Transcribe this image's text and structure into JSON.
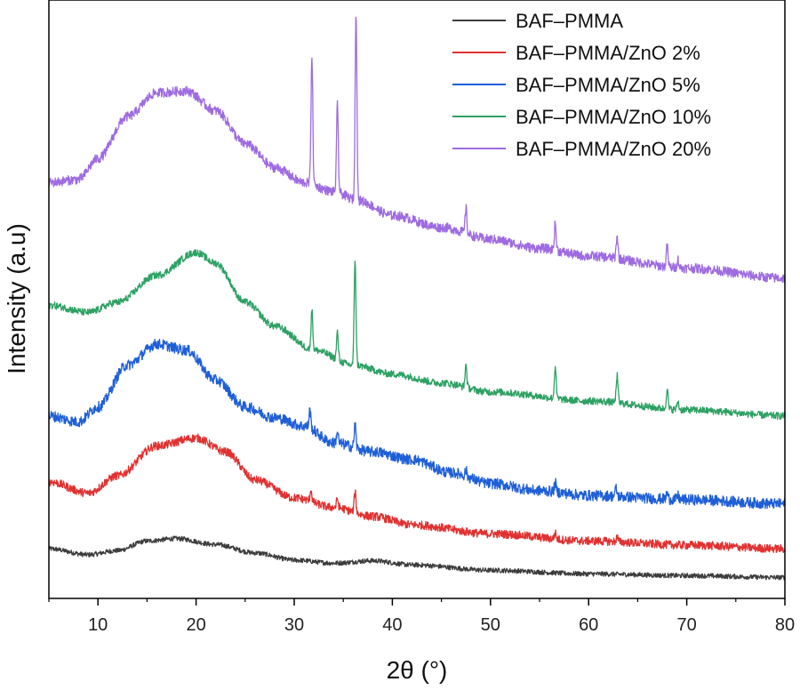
{
  "chart_data": {
    "type": "line",
    "title": "",
    "xlabel": "2θ (°)",
    "ylabel": "Intensity (a.u)",
    "xlim": [
      5,
      80
    ],
    "ylim": [
      0,
      100
    ],
    "xticks": [
      10,
      20,
      30,
      40,
      50,
      60,
      70,
      80
    ],
    "yticks_shown": false,
    "grid": false,
    "legend_position": "top-right",
    "peak_positions_2theta": [
      31.8,
      34.4,
      36.3,
      47.5,
      56.6,
      62.9,
      68.0,
      69.1
    ],
    "series": [
      {
        "name": "BAF–PMMA",
        "color": "#3c3c3c",
        "baseline": [
          [
            5,
            8.3
          ],
          [
            9,
            7.3
          ],
          [
            12,
            8.0
          ],
          [
            15,
            9.6
          ],
          [
            18,
            10.0
          ],
          [
            22,
            9.0
          ],
          [
            26,
            7.6
          ],
          [
            30,
            6.4
          ],
          [
            34,
            5.9
          ],
          [
            38,
            6.3
          ],
          [
            42,
            5.6
          ],
          [
            50,
            4.7
          ],
          [
            60,
            4.1
          ],
          [
            70,
            3.8
          ],
          [
            80,
            3.5
          ]
        ],
        "peaks": [],
        "noise": 0.4
      },
      {
        "name": "BAF–PMMA/ZnO 2%",
        "color": "#e03131",
        "baseline": [
          [
            5,
            19.5
          ],
          [
            9,
            17.6
          ],
          [
            12,
            20.5
          ],
          [
            16,
            25.5
          ],
          [
            20,
            26.8
          ],
          [
            23,
            24.5
          ],
          [
            26,
            19.8
          ],
          [
            30,
            16.8
          ],
          [
            34,
            15.2
          ],
          [
            38,
            13.7
          ],
          [
            42,
            12.3
          ],
          [
            50,
            10.8
          ],
          [
            60,
            9.6
          ],
          [
            70,
            8.9
          ],
          [
            80,
            8.3
          ]
        ],
        "peaks": [
          [
            31.7,
            2.0
          ],
          [
            34.4,
            1.5
          ],
          [
            36.2,
            3.5
          ],
          [
            56.6,
            1.0
          ],
          [
            62.9,
            0.8
          ]
        ],
        "noise": 0.7
      },
      {
        "name": "BAF–PMMA/ZnO 5%",
        "color": "#1f5fd6",
        "baseline": [
          [
            5,
            30.5
          ],
          [
            8,
            29.5
          ],
          [
            10,
            32.0
          ],
          [
            13,
            39.0
          ],
          [
            16,
            42.5
          ],
          [
            19,
            41.5
          ],
          [
            22,
            36.5
          ],
          [
            25,
            32.0
          ],
          [
            28,
            30.2
          ],
          [
            31,
            28.8
          ],
          [
            34,
            26.0
          ],
          [
            38,
            24.5
          ],
          [
            42,
            23.2
          ],
          [
            46,
            21.0
          ],
          [
            50,
            19.2
          ],
          [
            55,
            18.0
          ],
          [
            60,
            17.2
          ],
          [
            70,
            16.5
          ],
          [
            80,
            15.8
          ]
        ],
        "peaks": [
          [
            31.6,
            3.0
          ],
          [
            34.4,
            2.0
          ],
          [
            36.2,
            4.0
          ],
          [
            47.5,
            1.0
          ],
          [
            56.6,
            1.5
          ],
          [
            62.8,
            1.3
          ],
          [
            68.0,
            1.0
          ],
          [
            69.1,
            0.6
          ]
        ],
        "noise": 0.9
      },
      {
        "name": "BAF–PMMA/ZnO 10%",
        "color": "#2ea164",
        "baseline": [
          [
            5,
            49.0
          ],
          [
            9,
            47.8
          ],
          [
            12,
            49.5
          ],
          [
            16,
            54.0
          ],
          [
            20,
            57.8
          ],
          [
            22,
            56.0
          ],
          [
            25,
            49.5
          ],
          [
            28,
            45.5
          ],
          [
            32,
            41.5
          ],
          [
            36,
            39.0
          ],
          [
            40,
            37.5
          ],
          [
            45,
            36.0
          ],
          [
            50,
            34.5
          ],
          [
            60,
            33.0
          ],
          [
            70,
            31.5
          ],
          [
            80,
            30.5
          ]
        ],
        "peaks": [
          [
            31.8,
            6.8
          ],
          [
            34.4,
            4.6
          ],
          [
            36.2,
            17.8
          ],
          [
            47.5,
            3.8
          ],
          [
            56.6,
            5.4
          ],
          [
            62.9,
            4.6
          ],
          [
            68.0,
            3.4
          ],
          [
            69.1,
            1.4
          ]
        ],
        "noise": 0.6
      },
      {
        "name": "BAF–PMMA/ZnO 20%",
        "color": "#9e6be0",
        "baseline": [
          [
            5,
            69.5
          ],
          [
            8,
            70.0
          ],
          [
            10,
            73.5
          ],
          [
            13,
            80.5
          ],
          [
            16,
            84.5
          ],
          [
            19,
            84.8
          ],
          [
            22,
            81.5
          ],
          [
            25,
            76.0
          ],
          [
            28,
            72.0
          ],
          [
            31,
            69.5
          ],
          [
            34,
            68.0
          ],
          [
            36.5,
            66.5
          ],
          [
            40,
            64.0
          ],
          [
            45,
            62.0
          ],
          [
            50,
            60.0
          ],
          [
            55,
            58.5
          ],
          [
            60,
            57.2
          ],
          [
            70,
            55.2
          ],
          [
            80,
            53.5
          ]
        ],
        "peaks": [
          [
            31.8,
            21.5
          ],
          [
            34.4,
            14.5
          ],
          [
            36.3,
            31.5
          ],
          [
            47.5,
            4.3
          ],
          [
            56.6,
            4.5
          ],
          [
            62.9,
            3.8
          ],
          [
            68.0,
            3.4
          ],
          [
            69.1,
            1.4
          ]
        ],
        "noise": 0.8
      }
    ]
  }
}
